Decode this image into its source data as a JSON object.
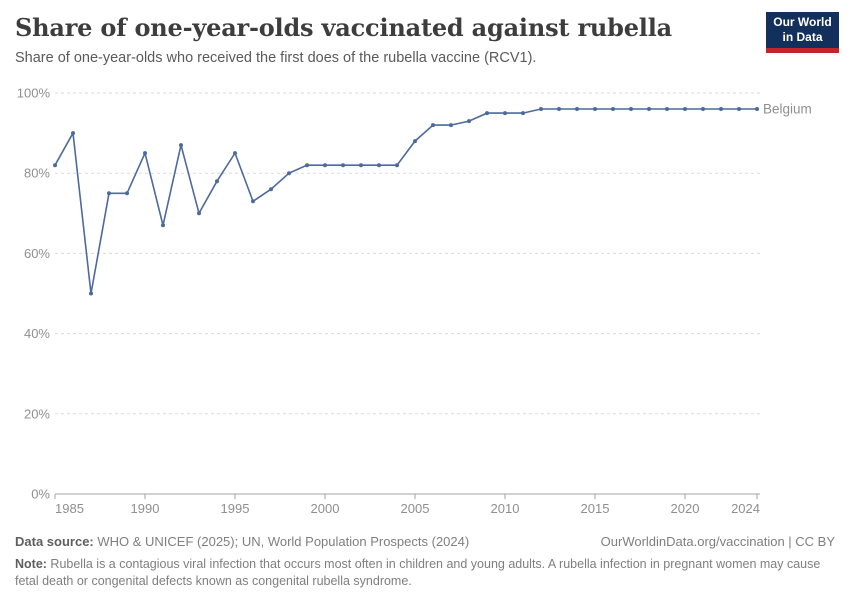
{
  "header": {
    "title": "Share of one-year-olds vaccinated against rubella",
    "subtitle": "Share of one-year-olds who received the first does of the rubella vaccine (RCV1).",
    "logo_line1": "Our World",
    "logo_line2": "in Data"
  },
  "chart_data": {
    "type": "line",
    "title": "Share of one-year-olds vaccinated against rubella",
    "x_years": [
      1985,
      1986,
      1987,
      1988,
      1989,
      1990,
      1991,
      1992,
      1993,
      1994,
      1995,
      1996,
      1997,
      1998,
      1999,
      2000,
      2001,
      2002,
      2003,
      2004,
      2005,
      2006,
      2007,
      2008,
      2009,
      2010,
      2011,
      2012,
      2013,
      2014,
      2015,
      2016,
      2017,
      2018,
      2019,
      2020,
      2021,
      2022,
      2023,
      2024
    ],
    "series": [
      {
        "name": "Belgium",
        "color": "#4C6A9C",
        "values": [
          82,
          90,
          50,
          75,
          75,
          85,
          67,
          87,
          70,
          78,
          85,
          73,
          76,
          80,
          82,
          82,
          82,
          82,
          82,
          82,
          88,
          92,
          92,
          93,
          95,
          95,
          95,
          96,
          96,
          96,
          96,
          96,
          96,
          96,
          96,
          96,
          96,
          96,
          96,
          96
        ]
      }
    ],
    "xlim": [
      1985,
      2024
    ],
    "ylim": [
      0,
      100
    ],
    "yticks": [
      0,
      20,
      40,
      60,
      80,
      100
    ],
    "ytick_suffix": "%",
    "xticks": [
      1985,
      1990,
      1995,
      2000,
      2005,
      2010,
      2015,
      2020,
      2024
    ],
    "grid": "horizontal-dashed",
    "legend": "line-end-label",
    "xlabel": "",
    "ylabel": ""
  },
  "footer": {
    "datasource_label": "Data source:",
    "datasource_text": " WHO & UNICEF (2025); UN, World Population Prospects (2024)",
    "attribution": "OurWorldinData.org/vaccination | CC BY",
    "note_label": "Note:",
    "note_text": " Rubella is a contagious viral infection that occurs most often in children and young adults. A rubella infection in pregnant women may cause fetal death or congenital defects known as congenital rubella syndrome."
  },
  "colors": {
    "line": "#4C6A9C",
    "logo_bg": "#12305B",
    "logo_bar": "#C0272D",
    "grid": "#DADADA",
    "axis": "#A3A3A3",
    "tick_label": "#8F8F8F"
  }
}
